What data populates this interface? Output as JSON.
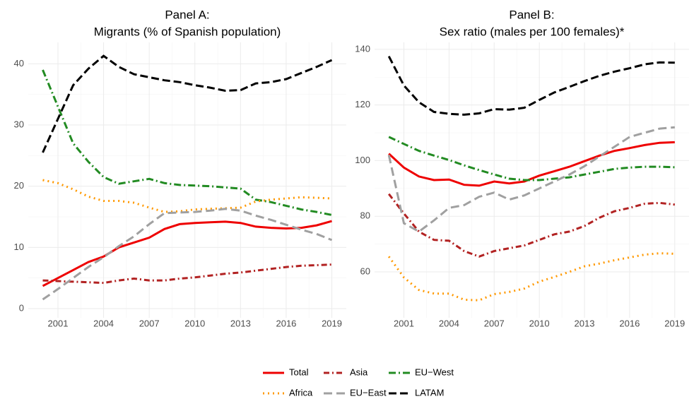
{
  "chart_data": [
    {
      "type": "line",
      "title": "Panel A:",
      "subtitle": "Migrants (% of Spanish population)",
      "x": [
        2000,
        2001,
        2002,
        2003,
        2004,
        2005,
        2006,
        2007,
        2008,
        2009,
        2010,
        2011,
        2012,
        2013,
        2014,
        2015,
        2016,
        2017,
        2018,
        2019
      ],
      "xlim": [
        1999.05,
        2019.95
      ],
      "xticks": [
        2001,
        2004,
        2007,
        2010,
        2013,
        2016,
        2019
      ],
      "ylim": [
        -1.5,
        43.5
      ],
      "yticks": [
        0,
        10,
        20,
        30,
        40
      ],
      "grid": true,
      "series": [
        {
          "name": "Total",
          "color": "#ee0000",
          "linetype": "solid",
          "values": [
            3.7,
            5.0,
            6.3,
            7.6,
            8.5,
            10.0,
            10.8,
            11.6,
            13.0,
            13.8,
            14.0,
            14.1,
            14.2,
            14.0,
            13.4,
            13.2,
            13.1,
            13.2,
            13.6,
            14.3
          ]
        },
        {
          "name": "Asia",
          "color": "#b22222",
          "linetype": "dotdash",
          "values": [
            4.6,
            4.5,
            4.4,
            4.3,
            4.2,
            4.6,
            4.9,
            4.6,
            4.6,
            4.9,
            5.1,
            5.4,
            5.7,
            5.9,
            6.2,
            6.5,
            6.8,
            7.0,
            7.1,
            7.2
          ]
        },
        {
          "name": "EU−West",
          "color": "#228b22",
          "linetype": "twodash",
          "values": [
            39,
            33,
            27,
            24,
            21.5,
            20.4,
            20.8,
            21.2,
            20.5,
            20.2,
            20.1,
            20.0,
            19.8,
            19.6,
            17.8,
            17.4,
            16.8,
            16.2,
            15.8,
            15.3
          ]
        },
        {
          "name": "Africa",
          "color": "#ff9900",
          "linetype": "dotted",
          "values": [
            21,
            20.5,
            19.5,
            18.3,
            17.6,
            17.6,
            17.3,
            16.5,
            15.8,
            15.9,
            16.2,
            16.3,
            16.4,
            16.5,
            17.5,
            17.8,
            18.0,
            18.2,
            18.1,
            18.0
          ]
        },
        {
          "name": "EU−East",
          "color": "#a0a0a0",
          "linetype": "longdash",
          "values": [
            1.5,
            3.2,
            5.0,
            6.8,
            8.4,
            10.2,
            11.8,
            13.8,
            15.6,
            15.7,
            15.8,
            16.0,
            16.3,
            16.0,
            15.2,
            14.5,
            13.7,
            12.9,
            12.2,
            11.2
          ]
        },
        {
          "name": "LATAM",
          "color": "#000000",
          "linetype": "dashed",
          "values": [
            25.5,
            31,
            36.5,
            39.2,
            41.3,
            39.5,
            38.3,
            37.8,
            37.3,
            37.0,
            36.5,
            36.1,
            35.6,
            35.7,
            36.8,
            37.0,
            37.5,
            38.5,
            39.5,
            40.6
          ]
        }
      ]
    },
    {
      "type": "line",
      "title": "Panel B:",
      "subtitle": "Sex ratio (males per 100 females)*",
      "x": [
        2000,
        2001,
        2002,
        2003,
        2004,
        2005,
        2006,
        2007,
        2008,
        2009,
        2010,
        2011,
        2012,
        2013,
        2014,
        2015,
        2016,
        2017,
        2018,
        2019
      ],
      "xlim": [
        1999.05,
        2019.95
      ],
      "xticks": [
        2001,
        2004,
        2007,
        2010,
        2013,
        2016,
        2019
      ],
      "ylim": [
        43.5,
        142.5
      ],
      "yticks": [
        60,
        80,
        100,
        120,
        140
      ],
      "grid": true,
      "series": [
        {
          "color": "#ee0000",
          "linetype": "solid",
          "values": [
            102.5,
            97.5,
            94.3,
            93,
            93.2,
            91.3,
            91,
            92.5,
            91.8,
            92.5,
            94.6,
            96.2,
            97.8,
            99.8,
            101.8,
            103.5,
            104.5,
            105.6,
            106.4,
            106.6
          ]
        },
        {
          "color": "#b22222",
          "linetype": "dotdash",
          "values": [
            88,
            81,
            74.5,
            71.5,
            71.2,
            67.5,
            65.5,
            67.5,
            68.5,
            69.5,
            71.5,
            73.5,
            74.5,
            76.5,
            79.5,
            81.8,
            83,
            84.5,
            84.8,
            84.2
          ]
        },
        {
          "color": "#228b22",
          "linetype": "twodash",
          "values": [
            108.5,
            106,
            103.5,
            101.8,
            100.2,
            98.3,
            96.6,
            95,
            93.5,
            93,
            93,
            93.5,
            94,
            95,
            96,
            97,
            97.5,
            97.8,
            97.8,
            97.6
          ]
        },
        {
          "color": "#ff9900",
          "linetype": "dotted",
          "values": [
            65.5,
            58,
            53.5,
            52.2,
            52.2,
            50,
            49.8,
            52,
            52.8,
            54,
            56.5,
            58.2,
            60,
            62,
            63,
            64.2,
            65.2,
            66.2,
            66.7,
            66.5
          ]
        },
        {
          "color": "#a0a0a0",
          "linetype": "longdash",
          "values": [
            102,
            77.5,
            74.5,
            78.5,
            83,
            84,
            87,
            88.5,
            86,
            87.5,
            90,
            92.5,
            95,
            98,
            101.5,
            105,
            108.5,
            110,
            111.5,
            112
          ]
        },
        {
          "color": "#000000",
          "linetype": "dashed",
          "values": [
            137.5,
            127,
            121,
            117.5,
            116.8,
            116.5,
            117,
            118.5,
            118.3,
            119,
            121.8,
            124.5,
            126.5,
            128.6,
            130.5,
            132,
            133.2,
            134.6,
            135.3,
            135.2
          ]
        }
      ]
    }
  ]
}
